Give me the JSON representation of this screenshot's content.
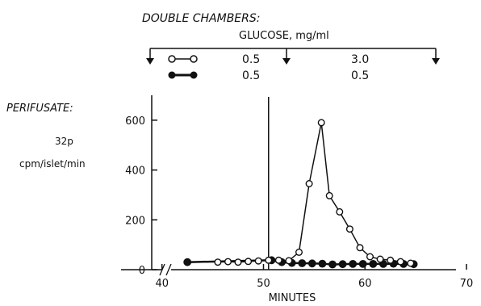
{
  "header": {
    "section_title": "DOUBLE CHAMBERS:",
    "glucose_label": "GLUCOSE, mg/ml",
    "legend_rows": [
      {
        "marker": "open-circle",
        "before": "0.5",
        "after": "3.0"
      },
      {
        "marker": "filled-circle",
        "before": "0.5",
        "after": "0.5"
      }
    ]
  },
  "perifusate_label": "PERIFUSATE:",
  "ylabel_isotope": "32p",
  "ylabel_units": "cpm/islet/min",
  "colors": {
    "ink": "#111111",
    "background": "#ffffff"
  },
  "chart_data": {
    "type": "line",
    "xlabel": "MINUTES",
    "x_ticks": [
      "40",
      "50",
      "60",
      "70"
    ],
    "y_ticks": [
      "0",
      "200",
      "400",
      "600"
    ],
    "xlim": [
      37,
      70
    ],
    "ylim": [
      0,
      700
    ],
    "x_axis_break": true,
    "glucose_switch_minute": 50.5,
    "legend_placement": "top",
    "grid": false,
    "series": [
      {
        "marker": "open-circle",
        "points": [
          [
            45.5,
            30
          ],
          [
            46.5,
            32
          ],
          [
            47.5,
            30
          ],
          [
            48.5,
            33
          ],
          [
            49.5,
            35
          ],
          [
            50.5,
            38
          ],
          [
            51.5,
            38
          ],
          [
            52.5,
            36
          ],
          [
            53.5,
            70
          ],
          [
            54.5,
            345
          ],
          [
            55.7,
            590
          ],
          [
            56.5,
            297
          ],
          [
            57.5,
            232
          ],
          [
            58.5,
            163
          ],
          [
            59.5,
            88
          ],
          [
            60.5,
            52
          ],
          [
            61.5,
            42
          ],
          [
            62.5,
            38
          ],
          [
            63.5,
            32
          ],
          [
            64.5,
            26
          ]
        ]
      },
      {
        "marker": "filled-circle",
        "points": [
          [
            42.5,
            30
          ],
          [
            50.8,
            38
          ],
          [
            51.8,
            30
          ],
          [
            52.8,
            27
          ],
          [
            53.8,
            26
          ],
          [
            54.8,
            25
          ],
          [
            55.8,
            24
          ],
          [
            56.8,
            21
          ],
          [
            57.8,
            22
          ],
          [
            58.8,
            23
          ],
          [
            59.8,
            23
          ],
          [
            60.8,
            23
          ],
          [
            61.8,
            23
          ],
          [
            62.8,
            24
          ],
          [
            63.8,
            23
          ],
          [
            64.8,
            22
          ]
        ]
      }
    ]
  }
}
